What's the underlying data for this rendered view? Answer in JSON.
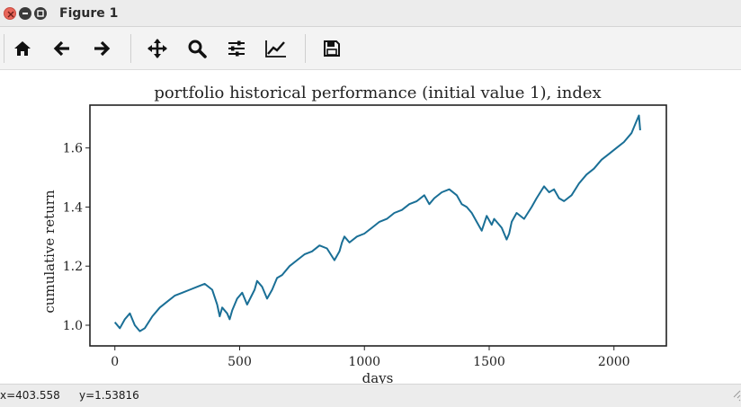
{
  "window": {
    "title": "Figure 1"
  },
  "toolbar": {
    "buttons": [
      {
        "name": "home-button",
        "icon": "home-icon"
      },
      {
        "name": "back-button",
        "icon": "arrow-left-icon"
      },
      {
        "name": "forward-button",
        "icon": "arrow-right-icon"
      },
      {
        "name": "pan-button",
        "icon": "move-icon"
      },
      {
        "name": "zoom-button",
        "icon": "magnifier-icon"
      },
      {
        "name": "subplots-button",
        "icon": "sliders-icon"
      },
      {
        "name": "edit-axes-button",
        "icon": "line-chart-icon"
      },
      {
        "name": "save-button",
        "icon": "floppy-disk-icon"
      }
    ]
  },
  "status": {
    "x_readout": "x=403.558",
    "y_readout": "y=1.53816"
  },
  "chart_data": {
    "type": "line",
    "title": "portfolio historical performance (initial value 1), index",
    "xlabel": "days",
    "ylabel": "cumulative return",
    "xlim": [
      -100,
      2210
    ],
    "ylim": [
      0.93,
      1.745
    ],
    "xticks": [
      0,
      500,
      1000,
      1500,
      2000
    ],
    "xtick_labels": [
      "0",
      "500",
      "1000",
      "1500",
      "2000"
    ],
    "yticks": [
      1.0,
      1.2,
      1.4,
      1.6
    ],
    "ytick_labels": [
      "1.0",
      "1.2",
      "1.4",
      "1.6"
    ],
    "grid": false,
    "line_color": "#1a6f96",
    "series": [
      {
        "x": [
          0,
          20,
          40,
          60,
          80,
          100,
          120,
          150,
          180,
          210,
          240,
          270,
          300,
          330,
          360,
          390,
          410,
          420,
          430,
          450,
          460,
          470,
          490,
          510,
          530,
          560,
          570,
          590,
          610,
          630,
          650,
          670,
          700,
          730,
          760,
          790,
          820,
          850,
          880,
          900,
          910,
          920,
          940,
          970,
          1000,
          1030,
          1060,
          1090,
          1120,
          1150,
          1180,
          1210,
          1240,
          1260,
          1280,
          1310,
          1340,
          1370,
          1390,
          1410,
          1430,
          1450,
          1470,
          1490,
          1510,
          1520,
          1530,
          1550,
          1570,
          1580,
          1590,
          1610,
          1640,
          1670,
          1690,
          1720,
          1740,
          1760,
          1780,
          1800,
          1830,
          1860,
          1890,
          1920,
          1950,
          1980,
          2010,
          2040,
          2070,
          2085,
          2095,
          2100,
          2105
        ],
        "values": [
          1.01,
          0.99,
          1.02,
          1.04,
          1.0,
          0.98,
          0.99,
          1.03,
          1.06,
          1.08,
          1.1,
          1.11,
          1.12,
          1.13,
          1.14,
          1.12,
          1.07,
          1.03,
          1.06,
          1.04,
          1.02,
          1.05,
          1.09,
          1.11,
          1.07,
          1.12,
          1.15,
          1.13,
          1.09,
          1.12,
          1.16,
          1.17,
          1.2,
          1.22,
          1.24,
          1.25,
          1.27,
          1.26,
          1.22,
          1.25,
          1.28,
          1.3,
          1.28,
          1.3,
          1.31,
          1.33,
          1.35,
          1.36,
          1.38,
          1.39,
          1.41,
          1.42,
          1.44,
          1.41,
          1.43,
          1.45,
          1.46,
          1.44,
          1.41,
          1.4,
          1.38,
          1.35,
          1.32,
          1.37,
          1.34,
          1.36,
          1.35,
          1.33,
          1.29,
          1.31,
          1.35,
          1.38,
          1.36,
          1.4,
          1.43,
          1.47,
          1.45,
          1.46,
          1.43,
          1.42,
          1.44,
          1.48,
          1.51,
          1.53,
          1.56,
          1.58,
          1.6,
          1.62,
          1.65,
          1.68,
          1.7,
          1.71,
          1.66
        ]
      }
    ]
  }
}
